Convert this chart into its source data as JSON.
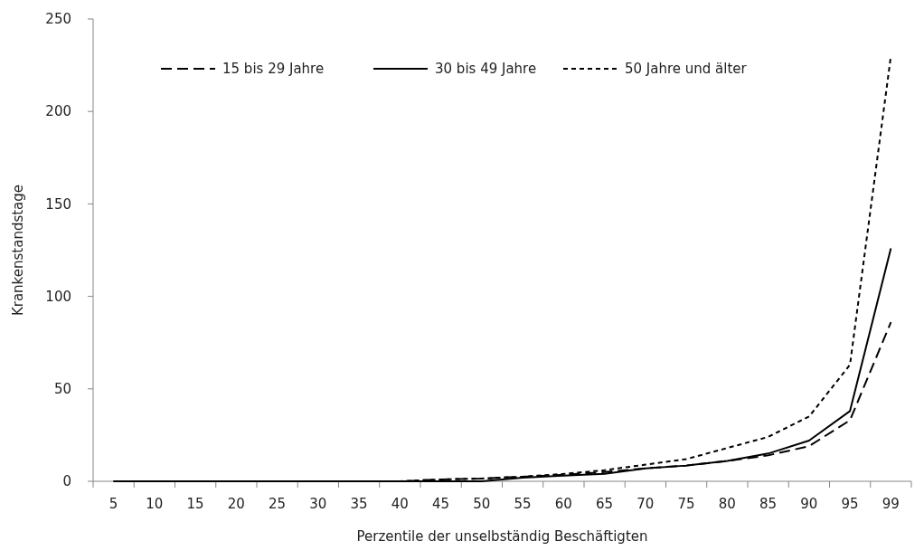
{
  "chart_data": {
    "type": "line",
    "xlabel": "Perzentile der unselbständig Beschäftigten",
    "ylabel": "Krankenstandstage",
    "categories": [
      "5",
      "10",
      "15",
      "20",
      "25",
      "30",
      "35",
      "40",
      "45",
      "50",
      "55",
      "60",
      "65",
      "70",
      "75",
      "80",
      "85",
      "90",
      "95",
      "99"
    ],
    "series": [
      {
        "name": "15 bis 29 Jahre",
        "color": "#000000",
        "line_style": "dashed",
        "values": [
          0,
          0,
          0,
          0,
          0,
          0,
          0,
          0,
          1,
          1.5,
          2.5,
          3.5,
          5,
          7,
          8.5,
          11,
          14,
          19,
          33,
          86
        ]
      },
      {
        "name": "30 bis 49 Jahre",
        "color": "#000000",
        "line_style": "solid",
        "values": [
          0,
          0,
          0,
          0,
          0,
          0,
          0,
          0,
          0,
          0,
          2,
          3,
          4,
          7,
          8.5,
          11,
          15,
          22,
          38,
          126
        ]
      },
      {
        "name": "50 Jahre und älter",
        "color": "#000000",
        "line_style": "dotted",
        "values": [
          0,
          0,
          0,
          0,
          0,
          0,
          0,
          0,
          1,
          1.5,
          2.5,
          4,
          6,
          9,
          12,
          18,
          24,
          35,
          63,
          230
        ]
      }
    ],
    "ylim": [
      0,
      250
    ],
    "yticks": [
      0,
      50,
      100,
      150,
      200,
      250
    ],
    "legend": "top",
    "marker": "none",
    "grid": false
  }
}
